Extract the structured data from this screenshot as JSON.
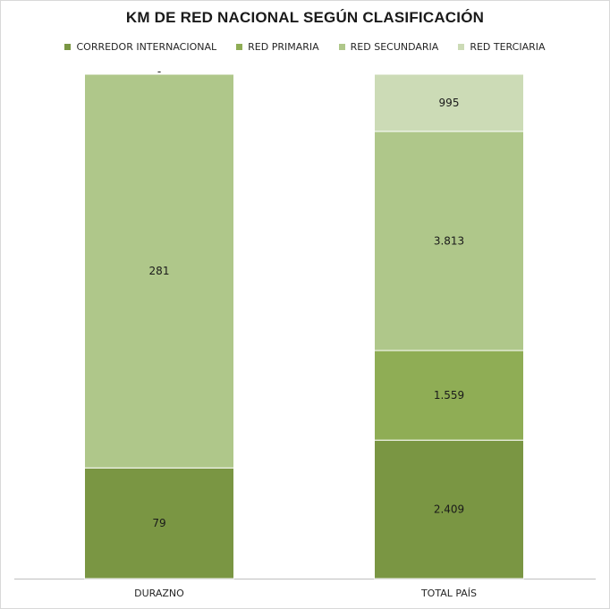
{
  "chart_data": {
    "type": "bar",
    "stacked": true,
    "title": "KM DE RED NACIONAL SEGÚN CLASIFICACIÓN",
    "categories": [
      "DURAZNO",
      "TOTAL PAÍS"
    ],
    "legend_position": "top",
    "grid": false,
    "series": [
      {
        "name": "CORREDOR INTERNACIONAL",
        "values": [
          79,
          2409
        ],
        "labels": [
          "79",
          "2.409"
        ],
        "color": "#7a9643"
      },
      {
        "name": "RED PRIMARIA",
        "values": [
          0,
          1559
        ],
        "labels": [
          "-",
          "1.559"
        ],
        "color": "#8fad55"
      },
      {
        "name": "RED SECUNDARIA",
        "values": [
          281,
          3813
        ],
        "labels": [
          "281",
          "3.813"
        ],
        "color": "#afc78a"
      },
      {
        "name": "RED TERCIARIA",
        "values": [
          0,
          995
        ],
        "labels": [
          "-",
          "995"
        ],
        "color": "#ccdbb6"
      }
    ],
    "normalized": true,
    "ylim": [
      0,
      100
    ]
  }
}
